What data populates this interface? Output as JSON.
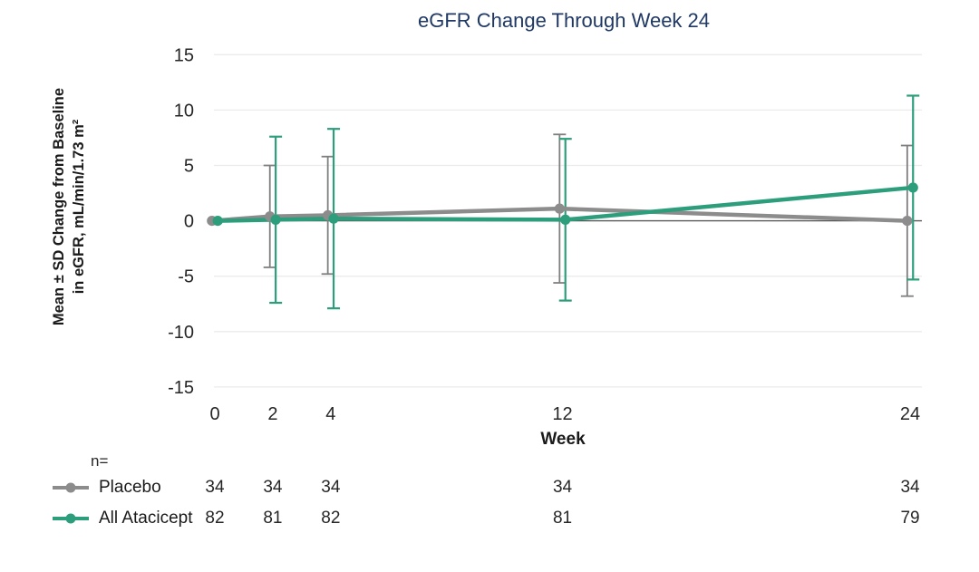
{
  "chart_data": {
    "type": "line",
    "title": "eGFR Change Through Week 24",
    "title_color": "#1f3864",
    "xlabel": "Week",
    "ylabel_line1": "Mean ± SD Change from Baseline",
    "ylabel_line2": "in eGFR, mL/min/1.73 m²",
    "x": [
      0,
      2,
      4,
      12,
      24
    ],
    "x_tick_labels": [
      "0",
      "2",
      "4",
      "12",
      "24"
    ],
    "yticks": [
      15,
      10,
      5,
      0,
      -5,
      -10,
      -15
    ],
    "ylim": [
      -15,
      15
    ],
    "grid": true,
    "gridline_color": "#ebebeb",
    "zero_line_color": "#595959",
    "legend_position": "bottom-left table",
    "n_header": "n=",
    "error_bars": "mean ± SD, none shown at week 0",
    "series": [
      {
        "name": "Placebo",
        "color": "#8c8c8c",
        "errorbar_color": "#7f7f7f",
        "mean": [
          0.0,
          0.4,
          0.5,
          1.1,
          0.0
        ],
        "sd": [
          0.0,
          4.6,
          5.3,
          6.7,
          6.8
        ],
        "n": [
          34,
          34,
          34,
          34,
          34
        ]
      },
      {
        "name": "All Atacicept",
        "color": "#2d9e7b",
        "errorbar_color": "#2d9e7b",
        "mean": [
          0.0,
          0.1,
          0.2,
          0.1,
          3.0
        ],
        "sd": [
          0.0,
          7.5,
          8.1,
          7.3,
          8.3
        ],
        "n": [
          82,
          81,
          82,
          81,
          79
        ]
      }
    ]
  }
}
